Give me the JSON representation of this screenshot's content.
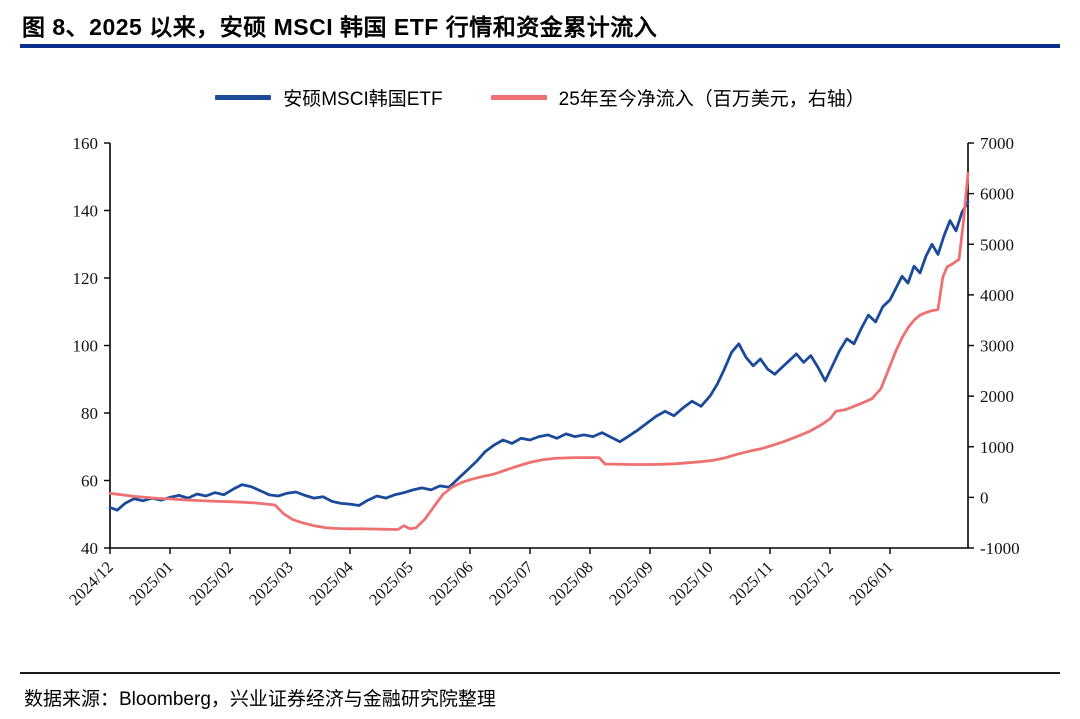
{
  "title": "图 8、2025 以来，安硕 MSCI 韩国 ETF 行情和资金累计流入",
  "footer": "数据来源：Bloomberg，兴业证券经济与金融研究院整理",
  "colors": {
    "title_rule": "#0A2E8A",
    "axis": "#000000",
    "etf_line": "#1B4A9B",
    "flow_line": "#EE7172"
  },
  "legend": [
    {
      "label": "安硕MSCI韩国ETF",
      "color": "#1B4A9B"
    },
    {
      "label": "25年至今净流入（百万美元，右轴）",
      "color": "#EE7172"
    }
  ],
  "chart_data": {
    "type": "line",
    "title": "安硕 MSCI 韩国 ETF 行情和资金累计流入",
    "x_tick_labels": [
      "2024/12",
      "2025/01",
      "2025/02",
      "2025/03",
      "2025/04",
      "2025/05",
      "2025/06",
      "2025/07",
      "2025/08",
      "2025/09",
      "2025/10",
      "2025/11",
      "2025/12",
      "2026/01"
    ],
    "x_max": 14.3,
    "grid": false,
    "legend_position": "top",
    "left_axis": {
      "min": 40,
      "max": 160,
      "ticks": [
        160,
        140,
        120,
        100,
        80,
        60,
        40
      ]
    },
    "right_axis": {
      "min": -1000,
      "max": 7000,
      "ticks": [
        7000,
        6000,
        5000,
        4000,
        3000,
        2000,
        1000,
        0,
        -1000
      ]
    },
    "series": [
      {
        "name": "安硕MSCI韩国ETF",
        "axis": "left",
        "color": "#1B4A9B",
        "x": [
          0,
          0.12,
          0.25,
          0.4,
          0.55,
          0.7,
          0.85,
          1.0,
          1.15,
          1.3,
          1.45,
          1.6,
          1.75,
          1.9,
          2.05,
          2.2,
          2.35,
          2.5,
          2.65,
          2.8,
          2.95,
          3.1,
          3.25,
          3.4,
          3.55,
          3.7,
          3.85,
          4.0,
          4.15,
          4.3,
          4.45,
          4.6,
          4.75,
          4.9,
          5.05,
          5.2,
          5.35,
          5.5,
          5.65,
          5.8,
          5.95,
          6.1,
          6.25,
          6.4,
          6.55,
          6.7,
          6.85,
          7.0,
          7.15,
          7.3,
          7.45,
          7.6,
          7.75,
          7.9,
          8.05,
          8.2,
          8.35,
          8.5,
          8.65,
          8.8,
          8.95,
          9.1,
          9.25,
          9.4,
          9.55,
          9.7,
          9.85,
          10.0,
          10.12,
          10.24,
          10.36,
          10.48,
          10.6,
          10.72,
          10.84,
          10.96,
          11.08,
          11.2,
          11.32,
          11.44,
          11.56,
          11.68,
          11.8,
          11.92,
          12.04,
          12.16,
          12.28,
          12.4,
          12.52,
          12.64,
          12.76,
          12.88,
          13.0,
          13.1,
          13.2,
          13.3,
          13.4,
          13.5,
          13.6,
          13.7,
          13.8,
          13.9,
          14.0,
          14.1,
          14.2,
          14.3
        ],
        "values": [
          52.0,
          51.2,
          53.2,
          54.6,
          54.0,
          54.8,
          54.2,
          55.0,
          55.6,
          54.8,
          56.0,
          55.4,
          56.4,
          55.8,
          57.4,
          58.8,
          58.2,
          57.0,
          55.8,
          55.4,
          56.2,
          56.6,
          55.6,
          54.8,
          55.2,
          53.8,
          53.2,
          53.0,
          52.6,
          54.2,
          55.4,
          54.8,
          55.8,
          56.4,
          57.2,
          57.8,
          57.2,
          58.4,
          58.0,
          60.5,
          63.0,
          65.5,
          68.5,
          70.5,
          72.0,
          71.0,
          72.5,
          72.0,
          73.0,
          73.5,
          72.5,
          73.8,
          73.0,
          73.5,
          73.0,
          74.2,
          72.8,
          71.5,
          73.2,
          75.0,
          77.0,
          79.0,
          80.5,
          79.2,
          81.5,
          83.5,
          82.0,
          85.0,
          88.5,
          93.0,
          98.0,
          100.5,
          96.5,
          94.0,
          96.0,
          93.0,
          91.5,
          93.5,
          95.5,
          97.5,
          95.0,
          97.0,
          93.5,
          89.5,
          94.0,
          98.5,
          102.0,
          100.5,
          105.0,
          109.0,
          107.0,
          111.5,
          113.5,
          117.0,
          120.5,
          118.5,
          123.5,
          121.5,
          126.5,
          130.0,
          127.0,
          132.5,
          137.0,
          134.0,
          139.5,
          142.5
        ]
      },
      {
        "name": "25年至今净流入（百万美元，右轴）",
        "axis": "right",
        "color": "#EE7172",
        "x": [
          0,
          0.2,
          0.4,
          0.6,
          0.8,
          1.0,
          1.2,
          1.4,
          1.6,
          1.8,
          2.0,
          2.2,
          2.4,
          2.6,
          2.75,
          2.9,
          3.05,
          3.2,
          3.4,
          3.6,
          3.8,
          4.0,
          4.2,
          4.4,
          4.6,
          4.8,
          4.9,
          5.0,
          5.1,
          5.25,
          5.4,
          5.55,
          5.7,
          5.85,
          6.0,
          6.2,
          6.4,
          6.6,
          6.8,
          7.0,
          7.2,
          7.4,
          7.6,
          7.8,
          8.0,
          8.15,
          8.25,
          8.45,
          8.65,
          8.85,
          9.05,
          9.25,
          9.45,
          9.65,
          9.85,
          10.05,
          10.25,
          10.45,
          10.65,
          10.85,
          11.05,
          11.25,
          11.45,
          11.65,
          11.85,
          12.0,
          12.1,
          12.25,
          12.4,
          12.55,
          12.7,
          12.85,
          13.0,
          13.1,
          13.2,
          13.3,
          13.4,
          13.5,
          13.6,
          13.7,
          13.8,
          13.88,
          13.95,
          14.05,
          14.15,
          14.22,
          14.3
        ],
        "values": [
          80,
          50,
          20,
          0,
          -20,
          -30,
          -45,
          -60,
          -70,
          -80,
          -85,
          -95,
          -110,
          -130,
          -150,
          -330,
          -440,
          -500,
          -560,
          -600,
          -615,
          -620,
          -620,
          -625,
          -630,
          -635,
          -560,
          -620,
          -600,
          -430,
          -180,
          60,
          200,
          290,
          350,
          410,
          460,
          540,
          620,
          690,
          740,
          770,
          780,
          785,
          785,
          785,
          660,
          655,
          650,
          650,
          650,
          655,
          665,
          685,
          705,
          730,
          780,
          850,
          910,
          960,
          1030,
          1110,
          1200,
          1300,
          1430,
          1550,
          1700,
          1730,
          1800,
          1870,
          1950,
          2150,
          2600,
          2900,
          3150,
          3350,
          3500,
          3600,
          3650,
          3690,
          3710,
          4350,
          4550,
          4620,
          4700,
          5400,
          6400
        ]
      }
    ]
  }
}
